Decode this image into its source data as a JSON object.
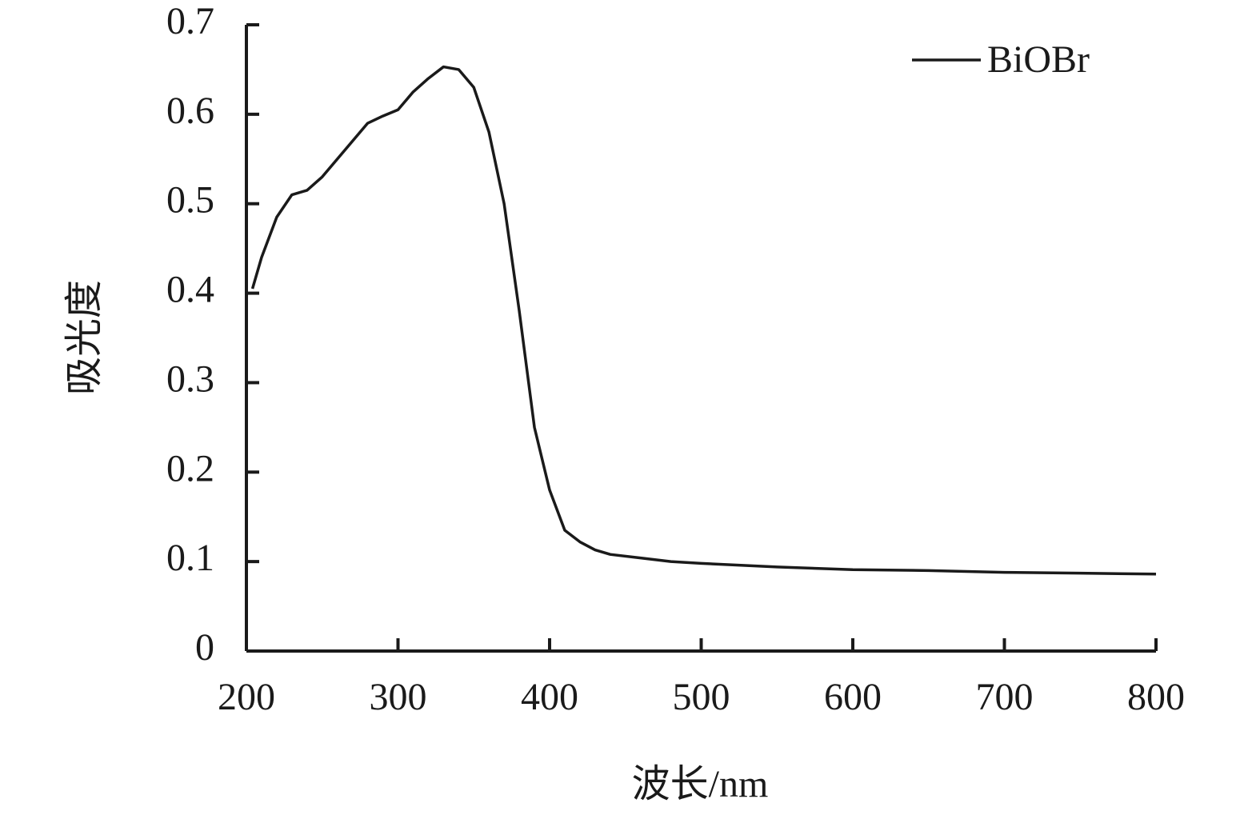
{
  "chart_data": {
    "type": "line",
    "x_label": "波长/nm",
    "y_label": "吸光度",
    "x": [
      204,
      210,
      220,
      230,
      240,
      250,
      260,
      270,
      280,
      290,
      300,
      310,
      320,
      330,
      340,
      350,
      360,
      370,
      380,
      390,
      400,
      410,
      420,
      430,
      440,
      460,
      480,
      500,
      550,
      600,
      650,
      700,
      750,
      800
    ],
    "series": [
      {
        "name": "BiOBr",
        "color": "#1a1a1a",
        "values": [
          0.405,
          0.44,
          0.485,
          0.51,
          0.515,
          0.53,
          0.55,
          0.57,
          0.59,
          0.598,
          0.605,
          0.625,
          0.64,
          0.653,
          0.65,
          0.63,
          0.58,
          0.5,
          0.38,
          0.25,
          0.18,
          0.135,
          0.122,
          0.113,
          0.108,
          0.104,
          0.1,
          0.098,
          0.094,
          0.091,
          0.09,
          0.088,
          0.087,
          0.086
        ]
      }
    ],
    "xlim": [
      200,
      800
    ],
    "xticks": [
      200,
      300,
      400,
      500,
      600,
      700,
      800
    ],
    "ylim": [
      0,
      0.7
    ],
    "yticks": [
      0,
      0.1,
      0.2,
      0.3,
      0.4,
      0.5,
      0.6,
      0.7
    ],
    "legend": "top-right"
  }
}
